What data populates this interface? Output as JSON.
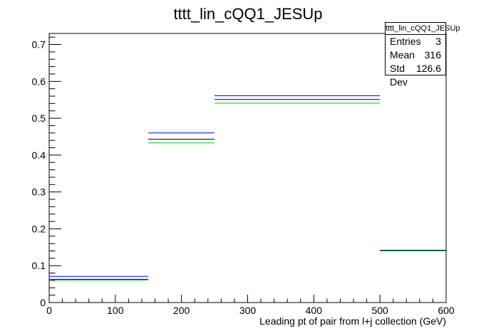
{
  "chart_data": {
    "type": "step",
    "title": "tttt_lin_cQQ1_JESUp",
    "xlabel": "Leading pt of pair from l+j collection (GeV)",
    "ylabel": "",
    "xlim": [
      0,
      600
    ],
    "ylim": [
      0,
      0.73
    ],
    "x_ticks": [
      0,
      100,
      200,
      300,
      400,
      500,
      600
    ],
    "y_ticks": [
      0,
      0.1,
      0.2,
      0.3,
      0.4,
      0.5,
      0.6,
      0.7
    ],
    "bin_edges": [
      0,
      150,
      250,
      500,
      600
    ],
    "series": [
      {
        "color": "#0000ff",
        "values": [
          0.071,
          0.46,
          0.561,
          0.142
        ]
      },
      {
        "color": "#000000",
        "values": [
          0.063,
          0.443,
          0.551,
          0.141
        ]
      },
      {
        "color": "#00cc00",
        "values": [
          0.061,
          0.433,
          0.541,
          0.14
        ]
      }
    ],
    "stats": {
      "title": "tttt_lin_cQQ1_JESUp",
      "rows": [
        {
          "label": "Entries",
          "value": "3"
        },
        {
          "label": "Mean",
          "value": "316"
        },
        {
          "label": "Std Dev",
          "value": "126.6"
        }
      ]
    },
    "grid": false,
    "legend": "none"
  }
}
